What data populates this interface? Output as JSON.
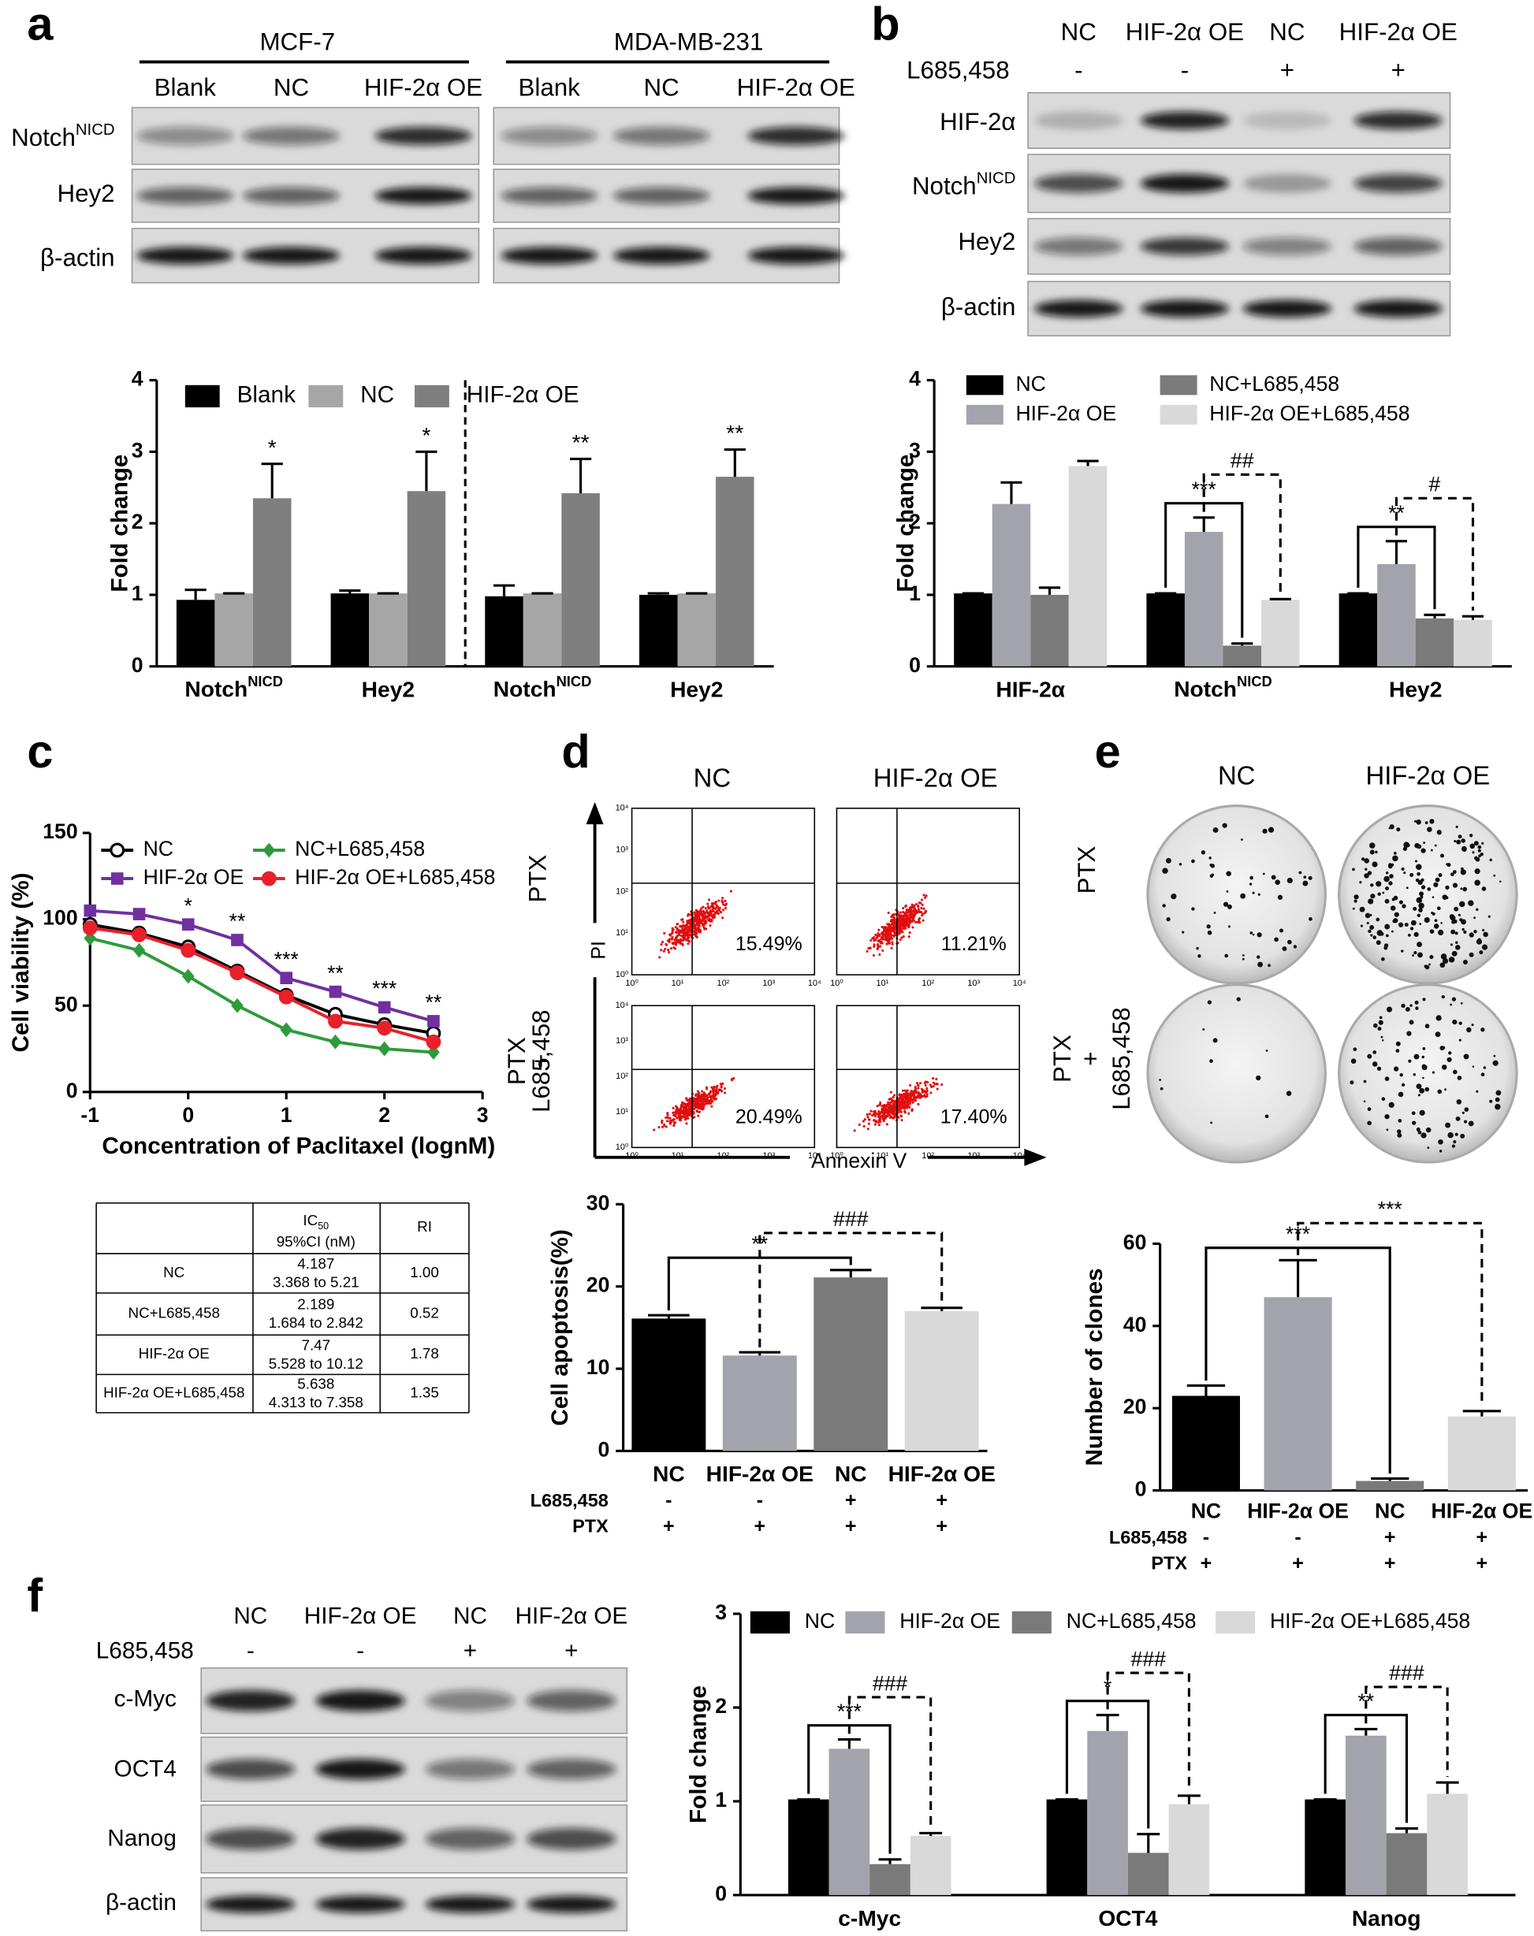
{
  "figure": {
    "panel_labels": [
      "a",
      "b",
      "c",
      "d",
      "e",
      "f"
    ],
    "blot_a": {
      "groups": [
        "MCF-7",
        "MDA-MB-231"
      ],
      "lanes": [
        "Blank",
        "NC",
        "HIF-2α OE",
        "Blank",
        "NC",
        "HIF-2α OE"
      ],
      "rows": [
        {
          "text": "Notch",
          "sup": "NICD"
        },
        "Hey2",
        "β-actin"
      ]
    },
    "blot_b": {
      "lanes": [
        "NC",
        "HIF-2α OE",
        "NC",
        "HIF-2α OE"
      ],
      "treatment": "L685,458",
      "signs": [
        "-",
        "-",
        "+",
        "+"
      ],
      "rows": [
        "HIF-2α",
        {
          "text": "Notch",
          "sup": "NICD"
        },
        "Hey2",
        "β-actin"
      ]
    },
    "table_c": {
      "header": {
        "ic": "IC",
        "ic_sub": "50",
        "ci": "95%CI (nM)",
        "ri": "RI"
      },
      "rows": [
        [
          "NC",
          "4.187",
          "3.368 to 5.21",
          "1.00"
        ],
        [
          "NC+L685,458",
          "2.189",
          "1.684 to 2.842",
          "0.52"
        ],
        [
          "HIF-2α OE",
          "7.47",
          "5.528 to 10.12",
          "1.78"
        ],
        [
          "HIF-2α OE+L685,458",
          "5.638",
          "4.313 to 7.358",
          "1.35"
        ]
      ]
    },
    "flow_d": {
      "columns": [
        "NC",
        "HIF-2α OE"
      ],
      "rows": [
        [
          "PTX"
        ],
        [
          "PTX",
          "+",
          "L685,458"
        ]
      ],
      "percentages": [
        "15.49%",
        "11.21%",
        "20.49%",
        "17.40%"
      ],
      "y_axis": "PI",
      "x_axis": "Annexin V",
      "decades": [
        "10⁰",
        "10¹",
        "10²",
        "10³",
        "10⁴"
      ]
    },
    "colony_e": {
      "columns": [
        "NC",
        "HIF-2α OE"
      ],
      "rows": [
        [
          "PTX"
        ],
        [
          "PTX",
          "+",
          "L685,458"
        ]
      ]
    },
    "blot_f": {
      "lanes": [
        "NC",
        "HIF-2α OE",
        "NC",
        "HIF-2α OE"
      ],
      "treatment": "L685,458",
      "signs": [
        "-",
        "-",
        "+",
        "+"
      ],
      "rows": [
        "c-Myc",
        "OCT4",
        "Nanog",
        "β-actin"
      ]
    }
  },
  "chart_data": [
    {
      "type": "bar",
      "y_label": "Fold change",
      "categories": [
        {
          "text": "Notch",
          "sup": "NICD"
        },
        "Hey2",
        {
          "text": "Notch",
          "sup": "NICD"
        },
        "Hey2"
      ],
      "series": [
        {
          "name": "Blank",
          "color": "#000000",
          "values": [
            0.93,
            1.02,
            0.98,
            1.0
          ],
          "errors": [
            0.14,
            0.04,
            0.15,
            0.02
          ]
        },
        {
          "name": "NC",
          "color": "#a6a6a6",
          "values": [
            1.02,
            1.02,
            1.02,
            1.02
          ],
          "errors": [
            0,
            0,
            0,
            0
          ]
        },
        {
          "name": "HIF-2α OE",
          "color": "#7f7f7f",
          "values": [
            2.35,
            2.45,
            2.42,
            2.65
          ],
          "errors": [
            0.48,
            0.55,
            0.48,
            0.38
          ]
        }
      ],
      "ylim": [
        0,
        4
      ],
      "yticks": [
        0,
        1,
        2,
        3,
        4
      ],
      "annotations": [
        "*",
        "*",
        "**",
        "**"
      ]
    },
    {
      "type": "bar",
      "y_label": "Fold change",
      "categories": [
        "HIF-2α",
        {
          "text": "Notch",
          "sup": "NICD"
        },
        "Hey2"
      ],
      "series": [
        {
          "name": "NC",
          "color": "#000000",
          "values": [
            1.02,
            1.02,
            1.02
          ],
          "errors": [
            0,
            0,
            0
          ]
        },
        {
          "name": "HIF-2α OE",
          "color": "#a3a3ab",
          "values": [
            2.27,
            1.88,
            1.43
          ],
          "errors": [
            0.3,
            0.2,
            0.32
          ]
        },
        {
          "name": "NC+L685,458",
          "color": "#7a7a7a",
          "values": [
            1.0,
            0.29,
            0.67
          ],
          "errors": [
            0.1,
            0.03,
            0.05
          ]
        },
        {
          "name": "HIF-2α OE+L685,458",
          "color": "#d9d9d9",
          "values": [
            2.8,
            0.93,
            0.65
          ],
          "errors": [
            0.07,
            0.01,
            0.05
          ]
        }
      ],
      "ylim": [
        0,
        4
      ],
      "yticks": [
        0,
        1,
        2,
        3,
        4
      ],
      "annotations": [
        null,
        [
          "***",
          "##"
        ],
        [
          "**",
          "#"
        ]
      ]
    },
    {
      "type": "line",
      "x_label": "Concentration of Paclitaxel  (lognM)",
      "y_label": "Cell viability (%)",
      "x": [
        -1,
        -0.5,
        0,
        0.5,
        1,
        1.5,
        2,
        2.5
      ],
      "series": [
        {
          "name": "NC",
          "color": "#000000",
          "marker": "circle-open",
          "values": [
            97,
            92,
            84,
            70,
            56,
            45,
            39,
            34
          ]
        },
        {
          "name": "HIF-2α OE",
          "color": "#7030a0",
          "marker": "square",
          "values": [
            105,
            103,
            97,
            88,
            66,
            58,
            49,
            41
          ]
        },
        {
          "name": "NC+L685,458",
          "color": "#2e9b3a",
          "marker": "diamond",
          "values": [
            89,
            82,
            67,
            50,
            36,
            29,
            25,
            23
          ]
        },
        {
          "name": "HIF-2α OE+L685,458",
          "color": "#e8202a",
          "marker": "circle",
          "values": [
            95,
            91,
            82,
            69,
            55,
            41,
            37,
            29
          ]
        }
      ],
      "xlim": [
        -1,
        3
      ],
      "xticks": [
        -1,
        0,
        1,
        2,
        3
      ],
      "ylim": [
        0,
        150
      ],
      "yticks": [
        0,
        50,
        100,
        150
      ],
      "annotations": [
        null,
        null,
        "*",
        "**",
        "***",
        "**",
        "***",
        "**"
      ]
    },
    {
      "type": "bar",
      "y_label": "Cell apoptosis(%)",
      "categories": [
        "NC",
        "HIF-2α OE",
        "NC",
        "HIF-2α OE"
      ],
      "conditions": [
        {
          "name": "L685,458",
          "signs": [
            "-",
            "-",
            "+",
            "+"
          ]
        },
        {
          "name": "PTX",
          "signs": [
            "+",
            "+",
            "+",
            "+"
          ]
        }
      ],
      "values": [
        16.1,
        11.6,
        21.1,
        17.0
      ],
      "errors": [
        0.4,
        0.4,
        0.9,
        0.4
      ],
      "colors": [
        "#000000",
        "#a3a3ab",
        "#7a7a7a",
        "#d9d9d9"
      ],
      "ylim": [
        0,
        30
      ],
      "yticks": [
        0,
        10,
        20,
        30
      ],
      "annotations": [
        "**",
        "###"
      ]
    },
    {
      "type": "bar",
      "y_label": "Number of clones",
      "categories": [
        "NC",
        "HIF-2α OE",
        "NC",
        "HIF-2α OE"
      ],
      "conditions": [
        {
          "name": "L685,458",
          "signs": [
            "-",
            "-",
            "+",
            "+"
          ]
        },
        {
          "name": "PTX",
          "signs": [
            "+",
            "+",
            "+",
            "+"
          ]
        }
      ],
      "values": [
        23,
        47,
        2.3,
        18
      ],
      "errors": [
        2.5,
        9,
        0.6,
        1.3
      ],
      "colors": [
        "#000000",
        "#a3a3ab",
        "#7a7a7a",
        "#d9d9d9"
      ],
      "ylim": [
        0,
        60
      ],
      "yticks": [
        0,
        20,
        40,
        60
      ],
      "annotations": [
        "***",
        "***"
      ]
    },
    {
      "type": "bar",
      "y_label": "Fold change",
      "categories": [
        "c-Myc",
        "OCT4",
        "Nanog"
      ],
      "series": [
        {
          "name": "NC",
          "color": "#000000",
          "values": [
            1.02,
            1.02,
            1.02
          ],
          "errors": [
            0,
            0,
            0
          ]
        },
        {
          "name": "HIF-2α OE",
          "color": "#a3a3ab",
          "values": [
            1.56,
            1.75,
            1.7
          ],
          "errors": [
            0.1,
            0.17,
            0.07
          ]
        },
        {
          "name": "NC+L685,458",
          "color": "#7a7a7a",
          "values": [
            0.33,
            0.45,
            0.66
          ],
          "errors": [
            0.05,
            0.2,
            0.05
          ]
        },
        {
          "name": "HIF-2α OE+L685,458",
          "color": "#d9d9d9",
          "values": [
            0.63,
            0.97,
            1.08
          ],
          "errors": [
            0.03,
            0.09,
            0.12
          ]
        }
      ],
      "ylim": [
        0,
        3
      ],
      "yticks": [
        0,
        1,
        2,
        3
      ],
      "annotations": [
        [
          "***",
          "###"
        ],
        [
          "*",
          "###"
        ],
        [
          "**",
          "###"
        ]
      ]
    }
  ]
}
